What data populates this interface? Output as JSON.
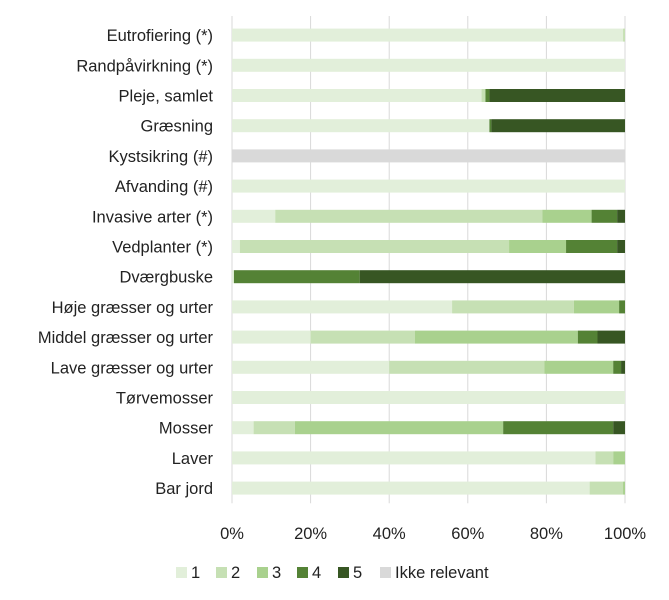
{
  "chart_data": {
    "type": "bar",
    "orientation": "horizontal",
    "stacked": "percent",
    "title": "",
    "xlabel": "",
    "ylabel": "",
    "xlim": [
      0,
      100
    ],
    "x_ticks": [
      "0%",
      "20%",
      "40%",
      "60%",
      "80%",
      "100%"
    ],
    "grid": "vertical",
    "legend_position": "bottom",
    "categories": [
      "Eutrofiering (*)",
      "Randpåvirkning (*)",
      "Pleje, samlet",
      "Græsning",
      "Kystsikring (#)",
      "Afvanding (#)",
      "Invasive arter (*)",
      "Vedplanter (*)",
      "Dværgbuske",
      "Høje græsser og urter",
      "Middel græsser og urter",
      "Lave græsser og urter",
      "Tørvemosser",
      "Mosser",
      "Laver",
      "Bar jord"
    ],
    "series": [
      {
        "name": "1",
        "color": "#e2efda",
        "values": [
          99.5,
          100,
          63.5,
          65.5,
          0,
          100,
          11,
          2,
          0.5,
          56,
          20,
          40,
          100,
          5.5,
          92.5,
          91
        ]
      },
      {
        "name": "2",
        "color": "#c6e0b4",
        "values": [
          0.5,
          0,
          1,
          0,
          0,
          0,
          68,
          68.5,
          0,
          31,
          26.5,
          39.5,
          0,
          10.5,
          4.5,
          8.5
        ]
      },
      {
        "name": "3",
        "color": "#a9d18e",
        "values": [
          0,
          0,
          0,
          0,
          0,
          0,
          12.5,
          14.5,
          0,
          11.5,
          41.5,
          17.5,
          0,
          53,
          3,
          0.5
        ]
      },
      {
        "name": "4",
        "color": "#548235",
        "values": [
          0,
          0,
          1,
          0.5,
          0,
          0,
          6.5,
          13,
          32,
          1.5,
          5,
          2,
          0,
          28,
          0,
          0
        ]
      },
      {
        "name": "5",
        "color": "#375623",
        "values": [
          0,
          0,
          34.5,
          34,
          0,
          0,
          2,
          2,
          67.5,
          0,
          7,
          1,
          0,
          3,
          0,
          0
        ]
      },
      {
        "name": "Ikke relevant",
        "color": "#d9d9d9",
        "values": [
          0,
          0,
          0,
          0,
          100,
          0,
          0,
          0,
          0,
          0,
          0,
          0,
          0,
          0,
          0,
          0
        ]
      }
    ]
  }
}
